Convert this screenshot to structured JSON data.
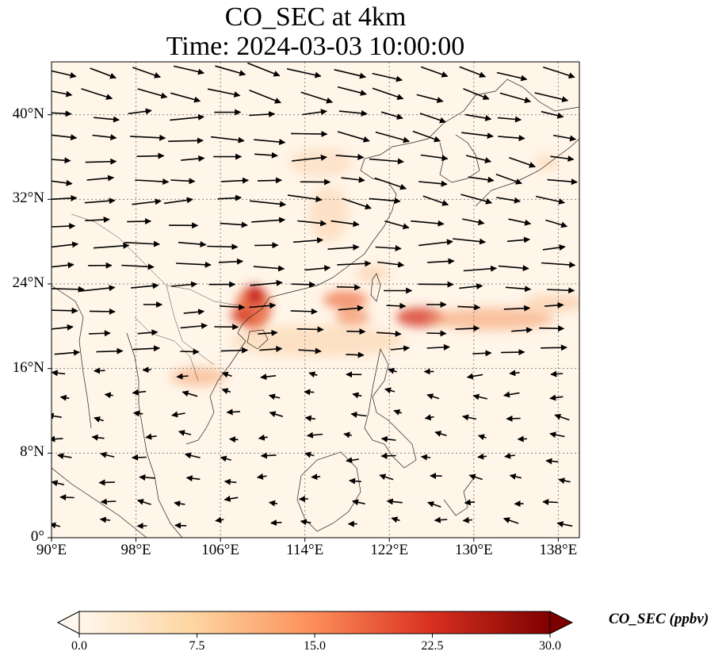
{
  "title": {
    "line1": "CO_SEC at 4km",
    "line2": "Time: 2024-03-03 10:00:00"
  },
  "map": {
    "extent": {
      "lon_min": 90,
      "lon_max": 140,
      "lat_min": 0,
      "lat_max": 45
    },
    "lat_ticks": [
      {
        "value": 0,
        "label": "0°"
      },
      {
        "value": 8,
        "label": "8°N"
      },
      {
        "value": 16,
        "label": "16°N"
      },
      {
        "value": 24,
        "label": "24°N"
      },
      {
        "value": 32,
        "label": "32°N"
      },
      {
        "value": 40,
        "label": "40°N"
      }
    ],
    "lon_ticks": [
      {
        "value": 90,
        "label": "90°E"
      },
      {
        "value": 98,
        "label": "98°E"
      },
      {
        "value": 106,
        "label": "106°E"
      },
      {
        "value": 114,
        "label": "114°E"
      },
      {
        "value": 122,
        "label": "122°E"
      },
      {
        "value": 130,
        "label": "130°E"
      },
      {
        "value": 138,
        "label": "138°E"
      }
    ],
    "gridlines": true,
    "vectors": "wind"
  },
  "colorbar": {
    "label": "CO_SEC (ppbv)",
    "min": 0,
    "max": 30,
    "extend": "both",
    "cmap": "OrRd",
    "ticks": [
      {
        "value": 0,
        "label": "0.0"
      },
      {
        "value": 7.5,
        "label": "7.5"
      },
      {
        "value": 15,
        "label": "15.0"
      },
      {
        "value": 22.5,
        "label": "22.5"
      },
      {
        "value": 30,
        "label": "30.0"
      }
    ],
    "colors": [
      "#fff7ec",
      "#fdd49e",
      "#fc8d59",
      "#d7301f",
      "#7f0000"
    ]
  }
}
